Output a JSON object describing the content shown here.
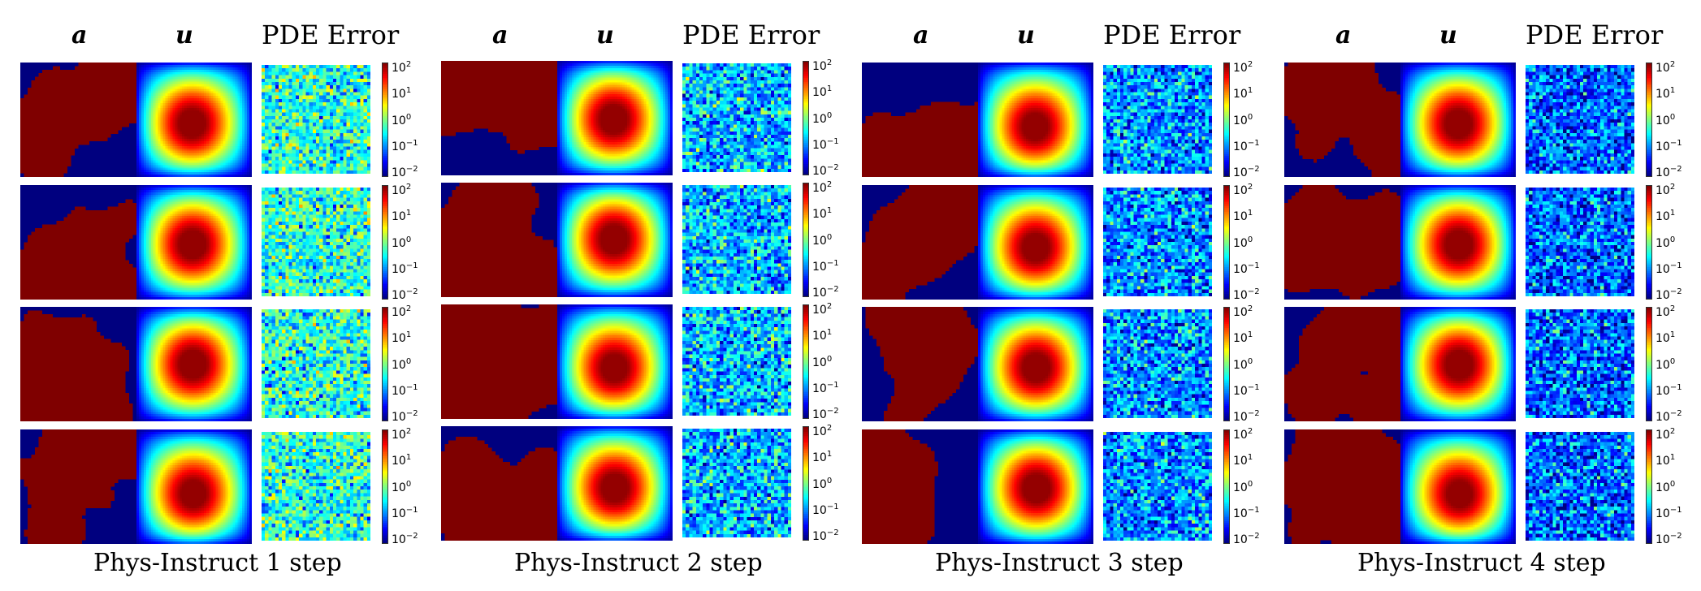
{
  "column_headers": {
    "a": "a",
    "u": "u",
    "error": "PDE Error"
  },
  "panels": [
    {
      "caption": "Phys-Instruct 1 step",
      "samples": 4,
      "error_mean_log10": -0.55
    },
    {
      "caption": "Phys-Instruct 2 step",
      "samples": 4,
      "error_mean_log10": -1.05
    },
    {
      "caption": "Phys-Instruct 3 step",
      "samples": 4,
      "error_mean_log10": -1.25
    },
    {
      "caption": "Phys-Instruct 4 step",
      "samples": 4,
      "error_mean_log10": -1.45
    }
  ],
  "colorbar": {
    "scale": "log",
    "ticks": [
      {
        "base": "10",
        "exp": "2"
      },
      {
        "base": "10",
        "exp": "1"
      },
      {
        "base": "10",
        "exp": "0"
      },
      {
        "base": "10",
        "exp": "−1"
      },
      {
        "base": "10",
        "exp": "−2"
      }
    ]
  },
  "colors": {
    "low": "#00007f",
    "high": "#7f0000",
    "colormap": "jet"
  }
}
